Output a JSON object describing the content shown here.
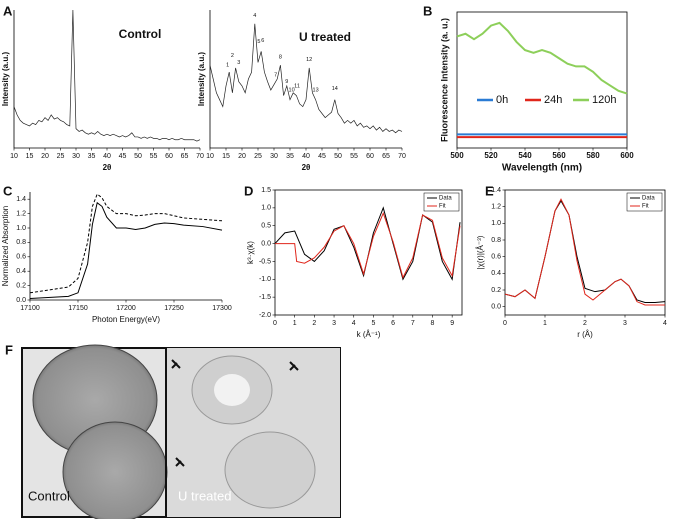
{
  "chart_data": [
    {
      "type": "line",
      "panel": "A",
      "title": "Control",
      "xlabel": "2θ",
      "ylabel": "Intensity (a.u.)",
      "x": [
        10,
        11,
        12,
        13,
        14,
        15,
        16,
        17,
        18,
        19,
        20,
        21,
        22,
        23,
        24,
        25,
        26,
        27,
        28,
        29,
        30,
        31,
        32,
        33,
        34,
        35,
        36,
        37,
        38,
        39,
        40,
        41,
        42,
        43,
        44,
        45,
        46,
        47,
        48,
        49,
        50,
        51,
        52,
        53,
        54,
        55,
        56,
        57,
        58,
        59,
        60,
        61,
        62,
        63,
        64,
        65,
        66,
        67,
        68,
        69,
        70
      ],
      "series": [
        {
          "color": "#222222",
          "values": [
            30,
            24,
            20,
            18,
            17,
            16,
            18,
            17,
            20,
            19,
            22,
            20,
            24,
            21,
            22,
            20,
            19,
            17,
            16,
            100,
            14,
            12,
            13,
            11,
            10,
            11,
            10,
            12,
            10,
            9,
            10,
            9,
            10,
            9,
            8,
            9,
            8,
            9,
            11,
            8,
            8,
            7,
            8,
            7,
            8,
            7,
            7,
            6,
            7,
            7,
            6,
            7,
            6,
            6,
            7,
            6,
            6,
            6,
            6,
            5,
            6
          ]
        }
      ],
      "xlim": [
        10,
        70
      ],
      "xticks": [
        10,
        15,
        20,
        25,
        30,
        35,
        40,
        45,
        50,
        55,
        60,
        65,
        70
      ],
      "ylim": [
        0,
        100
      ]
    },
    {
      "type": "line",
      "title": "U treated",
      "xlabel": "2θ",
      "ylabel": "Intensity (a.u.)",
      "x": [
        10,
        11,
        12,
        13,
        14,
        15,
        16,
        17,
        18,
        19,
        20,
        21,
        22,
        23,
        24,
        25,
        26,
        27,
        28,
        29,
        30,
        31,
        32,
        33,
        34,
        35,
        36,
        37,
        38,
        39,
        40,
        41,
        42,
        43,
        44,
        45,
        46,
        47,
        48,
        49,
        50,
        51,
        52,
        53,
        54,
        55,
        56,
        57,
        58,
        59,
        60,
        61,
        62,
        63,
        64,
        65,
        66,
        67,
        68,
        69,
        70
      ],
      "series": [
        {
          "color": "#222222",
          "values": [
            60,
            50,
            40,
            35,
            30,
            45,
            55,
            40,
            58,
            48,
            45,
            40,
            50,
            55,
            90,
            62,
            70,
            55,
            48,
            42,
            46,
            50,
            60,
            38,
            45,
            35,
            40,
            38,
            32,
            30,
            35,
            58,
            40,
            35,
            28,
            25,
            22,
            24,
            26,
            35,
            25,
            22,
            18,
            20,
            18,
            20,
            16,
            18,
            15,
            16,
            14,
            16,
            13,
            15,
            12,
            14,
            12,
            13,
            11,
            13,
            12
          ]
        }
      ],
      "annotations": [
        {
          "text": "1",
          "x": 15.5,
          "y": 60
        },
        {
          "text": "2",
          "x": 17,
          "y": 67
        },
        {
          "text": "3",
          "x": 19,
          "y": 62
        },
        {
          "text": "4",
          "x": 24,
          "y": 96
        },
        {
          "text": "5",
          "x": 25.3,
          "y": 77
        },
        {
          "text": "6",
          "x": 26.5,
          "y": 78
        },
        {
          "text": "7",
          "x": 30.5,
          "y": 53
        },
        {
          "text": "8",
          "x": 32,
          "y": 66
        },
        {
          "text": "9",
          "x": 34,
          "y": 48
        },
        {
          "text": "10",
          "x": 35.5,
          "y": 42
        },
        {
          "text": "11",
          "x": 37.2,
          "y": 45
        },
        {
          "text": "12",
          "x": 41,
          "y": 64
        },
        {
          "text": "13",
          "x": 43,
          "y": 42
        },
        {
          "text": "14",
          "x": 49,
          "y": 43
        }
      ],
      "xlim": [
        10,
        70
      ],
      "xticks": [
        10,
        15,
        20,
        25,
        30,
        35,
        40,
        45,
        50,
        55,
        60,
        65,
        70
      ],
      "ylim": [
        0,
        100
      ]
    },
    {
      "type": "line",
      "panel": "B",
      "xlabel": "Wavelength (nm)",
      "ylabel": "Fluorescence Intensity (a. u.)",
      "x": [
        500,
        505,
        510,
        515,
        520,
        525,
        530,
        535,
        540,
        545,
        550,
        555,
        560,
        565,
        570,
        575,
        580,
        585,
        590,
        595,
        600
      ],
      "series": [
        {
          "name": "0h",
          "color": "#2a7bd4",
          "values": [
            10,
            10,
            10,
            10,
            10,
            10,
            10,
            10,
            10,
            10,
            10,
            10,
            10,
            10,
            10,
            10,
            10,
            10,
            10,
            10,
            10
          ]
        },
        {
          "name": "24h",
          "color": "#e0261b",
          "values": [
            8,
            8,
            8,
            8,
            8,
            8,
            8,
            8,
            8,
            8,
            8,
            8,
            8,
            8,
            8,
            8,
            8,
            8,
            8,
            8,
            8
          ]
        },
        {
          "name": "120h",
          "color": "#8dcf5a",
          "values": [
            82,
            84,
            80,
            84,
            90,
            92,
            86,
            78,
            72,
            70,
            72,
            70,
            66,
            62,
            60,
            60,
            56,
            50,
            46,
            42,
            40
          ]
        }
      ],
      "legend": "center",
      "xlim": [
        500,
        600
      ],
      "xticks": [
        500,
        520,
        540,
        560,
        580,
        600
      ],
      "ylim": [
        0,
        100
      ]
    },
    {
      "type": "line",
      "panel": "C",
      "xlabel": "Photon Energy(eV)",
      "ylabel": "Normalized Absorption",
      "x": [
        17100,
        17140,
        17150,
        17160,
        17165,
        17170,
        17175,
        17180,
        17190,
        17200,
        17210,
        17220,
        17230,
        17240,
        17250,
        17260,
        17280,
        17300
      ],
      "series": [
        {
          "color": "#000000",
          "style": "solid",
          "values": [
            0.02,
            0.05,
            0.1,
            0.5,
            1.05,
            1.35,
            1.3,
            1.15,
            1.0,
            1.0,
            0.98,
            1.0,
            1.05,
            1.07,
            1.06,
            1.04,
            1.02,
            0.97
          ]
        },
        {
          "color": "#000000",
          "style": "dashed",
          "values": [
            0.1,
            0.18,
            0.3,
            0.8,
            1.3,
            1.47,
            1.42,
            1.3,
            1.2,
            1.2,
            1.17,
            1.18,
            1.2,
            1.2,
            1.17,
            1.14,
            1.12,
            1.1
          ]
        }
      ],
      "xlim": [
        17100,
        17300
      ],
      "xticks": [
        17100,
        17150,
        17200,
        17250,
        17300
      ],
      "ylim": [
        0,
        1.5
      ],
      "yticks": [
        {
          "value": 0,
          "label": "0.0"
        },
        0.2,
        0.4,
        0.6,
        0.8,
        {
          "value": 1,
          "label": "1.0"
        },
        1.2,
        1.4
      ]
    },
    {
      "type": "line",
      "panel": "D",
      "xlabel": "k (Å⁻¹)",
      "ylabel": "k³·χ(k)",
      "series": [
        {
          "name": "Data",
          "color": "#000000",
          "x": [
            0,
            0.5,
            1,
            1.5,
            2,
            2.5,
            3,
            3.5,
            4,
            4.5,
            5,
            5.5,
            6,
            6.5,
            7,
            7.5,
            8,
            8.5,
            9,
            9.4
          ],
          "values": [
            0,
            0.3,
            0.35,
            -0.3,
            -0.5,
            -0.2,
            0.4,
            0.5,
            -0.1,
            -0.9,
            0.3,
            1.0,
            0,
            -1.0,
            -0.5,
            0.8,
            0.6,
            -0.5,
            -1.0,
            0.6
          ]
        },
        {
          "name": "Fit",
          "color": "#e0261b",
          "x": [
            0,
            0.5,
            1,
            1.1,
            1.5,
            2,
            2.5,
            3,
            3.5,
            4,
            4.5,
            5,
            5.5,
            6,
            6.5,
            7,
            7.5,
            8,
            8.5,
            9,
            9.4
          ],
          "values": [
            0,
            0,
            0,
            -0.5,
            -0.55,
            -0.4,
            -0.1,
            0.35,
            0.5,
            0,
            -0.85,
            0.2,
            0.85,
            0.05,
            -0.95,
            -0.4,
            0.8,
            0.65,
            -0.4,
            -0.9,
            0.5
          ]
        }
      ],
      "legend": "upper right",
      "xlim": [
        0,
        9.5
      ],
      "xticks": [
        0,
        1,
        2,
        3,
        4,
        5,
        6,
        7,
        8,
        9
      ],
      "ylim": [
        -2,
        1.5
      ],
      "yticks": [
        {
          "value": -2,
          "label": "-2.0"
        },
        -1.5,
        {
          "value": -1,
          "label": "-1.0"
        },
        -0.5,
        {
          "value": 0,
          "label": "0.0"
        },
        0.5,
        {
          "value": 1,
          "label": "1.0"
        },
        1.5
      ]
    },
    {
      "type": "line",
      "panel": "E",
      "xlabel": "r (Å)",
      "ylabel": "|χ(r)|(Å⁻³)",
      "series": [
        {
          "name": "Data",
          "color": "#000000",
          "x": [
            0,
            0.25,
            0.5,
            0.75,
            1,
            1.25,
            1.4,
            1.6,
            1.8,
            2,
            2.25,
            2.5,
            2.75,
            2.9,
            3.1,
            3.3,
            3.5,
            3.75,
            4
          ],
          "values": [
            0.15,
            0.12,
            0.2,
            0.1,
            0.6,
            1.15,
            1.27,
            1.1,
            0.6,
            0.22,
            0.18,
            0.2,
            0.3,
            0.33,
            0.25,
            0.08,
            0.05,
            0.05,
            0.06
          ]
        },
        {
          "name": "Fit",
          "color": "#e0261b",
          "x": [
            0,
            0.25,
            0.5,
            0.75,
            1,
            1.25,
            1.4,
            1.6,
            1.8,
            2,
            2.2,
            2.5,
            2.75,
            2.9,
            3.1,
            3.3,
            3.5,
            3.75,
            4
          ],
          "values": [
            0.15,
            0.12,
            0.2,
            0.1,
            0.6,
            1.15,
            1.29,
            1.1,
            0.55,
            0.15,
            0.08,
            0.2,
            0.3,
            0.33,
            0.25,
            0.06,
            0.02,
            0.02,
            0.02
          ]
        }
      ],
      "legend": "upper right",
      "xlim": [
        0,
        4
      ],
      "xticks": [
        0,
        1,
        2,
        3,
        4
      ],
      "ylim": [
        -0.1,
        1.4
      ],
      "yticks": [
        {
          "value": 0,
          "label": "0.0"
        },
        0.2,
        0.4,
        0.6,
        0.8,
        {
          "value": 1,
          "label": "1.0"
        },
        1.2,
        1.4
      ]
    }
  ],
  "micrographs": {
    "panel": "F",
    "left_label": "Control",
    "right_label": "U treated"
  }
}
